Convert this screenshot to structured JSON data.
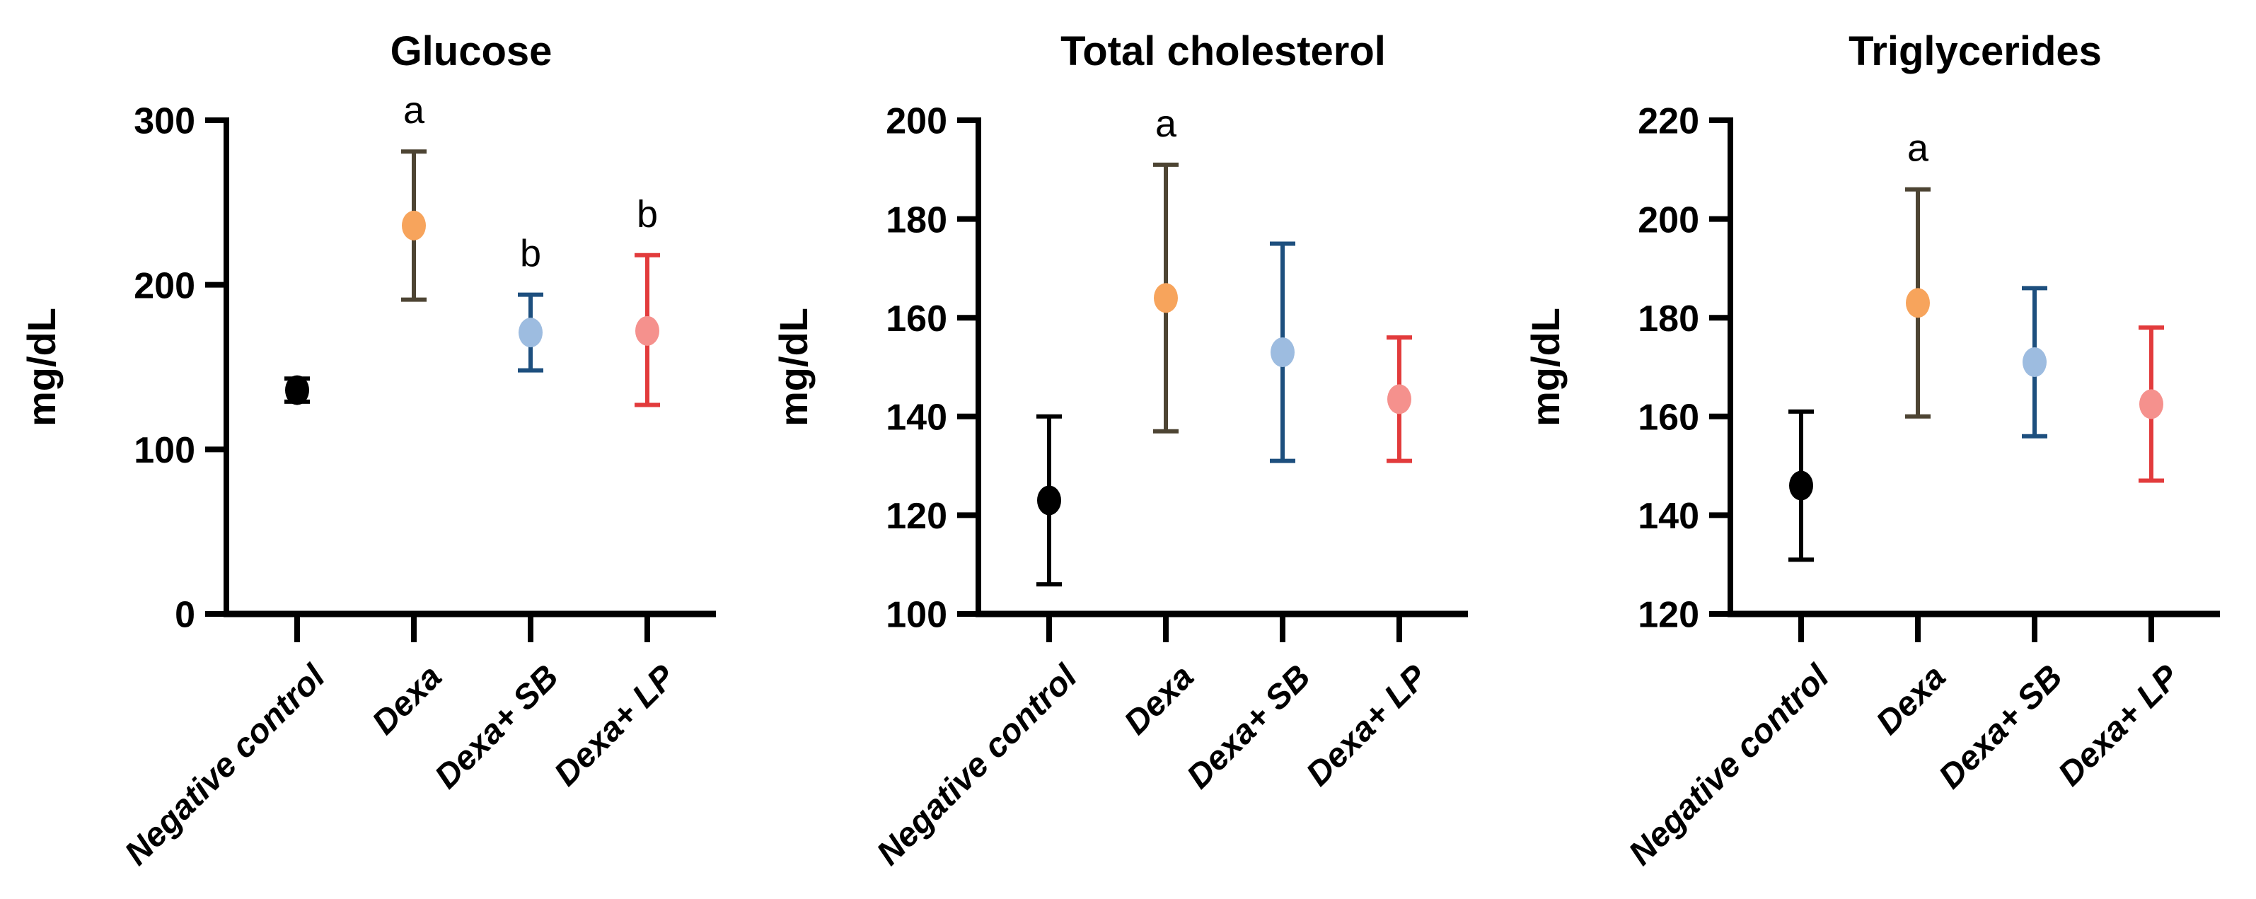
{
  "figure": {
    "background": "#ffffff",
    "axis_color": "#000000",
    "unit_label": "mg/dL"
  },
  "chart_data": [
    {
      "type": "scatter",
      "subtype": "mean-errorbar",
      "title": "Glucose",
      "ylabel": "mg/dL",
      "ylim": [
        0,
        300
      ],
      "yticks": [
        0,
        100,
        200,
        300
      ],
      "grid": false,
      "legend": "none",
      "categories": [
        "Negative control",
        "Dexa",
        "Dexa+ SB",
        "Dexa+ LP"
      ],
      "points": [
        {
          "group": "Negative control",
          "mean": 136,
          "lower": 129,
          "upper": 143,
          "marker_color": "#000000",
          "error_color": "#000000",
          "letter": ""
        },
        {
          "group": "Dexa",
          "mean": 236,
          "lower": 191,
          "upper": 281,
          "marker_color": "#F7A45C",
          "error_color": "#4D4433",
          "letter": "a"
        },
        {
          "group": "Dexa+ SB",
          "mean": 171,
          "lower": 148,
          "upper": 194,
          "marker_color": "#9DBCE0",
          "error_color": "#1D4F7E",
          "letter": "b"
        },
        {
          "group": "Dexa+ LP",
          "mean": 172,
          "lower": 127,
          "upper": 218,
          "marker_color": "#F5918D",
          "error_color": "#E23B3C",
          "letter": "b"
        }
      ]
    },
    {
      "type": "scatter",
      "subtype": "mean-errorbar",
      "title": "Total cholesterol",
      "ylabel": "mg/dL",
      "ylim": [
        100,
        200
      ],
      "yticks": [
        100,
        120,
        140,
        160,
        180,
        200
      ],
      "grid": false,
      "legend": "none",
      "categories": [
        "Negative control",
        "Dexa",
        "Dexa+ SB",
        "Dexa+ LP"
      ],
      "points": [
        {
          "group": "Negative control",
          "mean": 123,
          "lower": 106,
          "upper": 140,
          "marker_color": "#000000",
          "error_color": "#000000",
          "letter": ""
        },
        {
          "group": "Dexa",
          "mean": 164,
          "lower": 137,
          "upper": 191,
          "marker_color": "#F7A45C",
          "error_color": "#4D4433",
          "letter": "a"
        },
        {
          "group": "Dexa+ SB",
          "mean": 153,
          "lower": 131,
          "upper": 175,
          "marker_color": "#9DBCE0",
          "error_color": "#1D4F7E",
          "letter": ""
        },
        {
          "group": "Dexa+ LP",
          "mean": 143.5,
          "lower": 131,
          "upper": 156,
          "marker_color": "#F5918D",
          "error_color": "#E23B3C",
          "letter": ""
        }
      ]
    },
    {
      "type": "scatter",
      "subtype": "mean-errorbar",
      "title": "Triglycerides",
      "ylabel": "mg/dL",
      "ylim": [
        120,
        220
      ],
      "yticks": [
        120,
        140,
        160,
        180,
        200,
        220
      ],
      "grid": false,
      "legend": "none",
      "categories": [
        "Negative control",
        "Dexa",
        "Dexa+ SB",
        "Dexa+ LP"
      ],
      "points": [
        {
          "group": "Negative control",
          "mean": 146,
          "lower": 131,
          "upper": 161,
          "marker_color": "#000000",
          "error_color": "#000000",
          "letter": ""
        },
        {
          "group": "Dexa",
          "mean": 183,
          "lower": 160,
          "upper": 206,
          "marker_color": "#F7A45C",
          "error_color": "#4D4433",
          "letter": "a"
        },
        {
          "group": "Dexa+ SB",
          "mean": 171,
          "lower": 156,
          "upper": 186,
          "marker_color": "#9DBCE0",
          "error_color": "#1D4F7E",
          "letter": ""
        },
        {
          "group": "Dexa+ LP",
          "mean": 162.5,
          "lower": 147,
          "upper": 178,
          "marker_color": "#F5918D",
          "error_color": "#E23B3C",
          "letter": ""
        }
      ]
    }
  ]
}
